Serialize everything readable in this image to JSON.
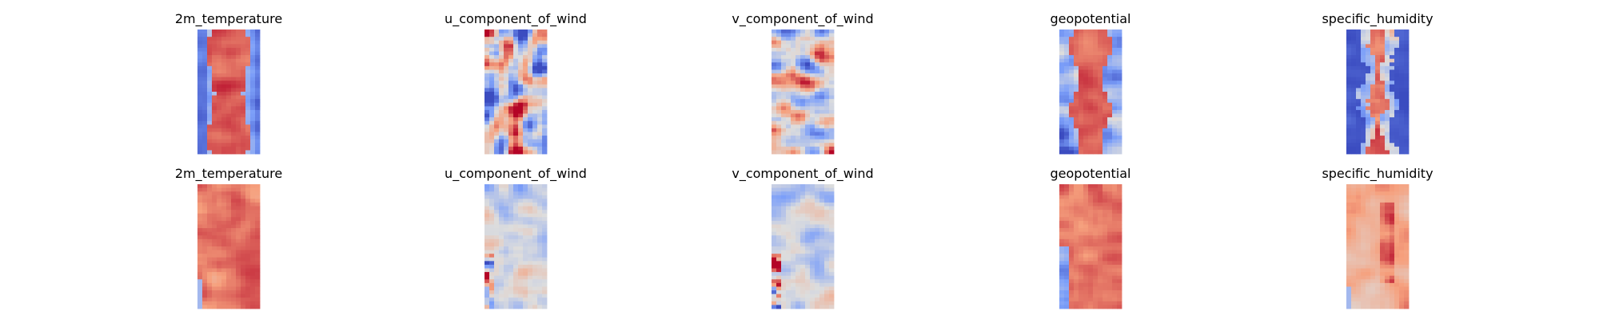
{
  "chart_data": {
    "type": "heatmap",
    "colormap": "coolwarm",
    "axes_visible": false,
    "grid": false,
    "rows": 2,
    "columns": 5,
    "panels": [
      {
        "title": "2m_temperature",
        "row": 0,
        "col": 0,
        "pattern": "band_center_hot"
      },
      {
        "title": "u_component_of_wind",
        "row": 0,
        "col": 1,
        "pattern": "noisy_bipolar"
      },
      {
        "title": "v_component_of_wind",
        "row": 0,
        "col": 2,
        "pattern": "noisy_neutral"
      },
      {
        "title": "geopotential",
        "row": 0,
        "col": 3,
        "pattern": "band_center_warm_wavy"
      },
      {
        "title": "specific_humidity",
        "row": 0,
        "col": 4,
        "pattern": "band_center_narrow_cold_edges"
      },
      {
        "title": "2m_temperature",
        "row": 1,
        "col": 0,
        "pattern": "uniform_warm"
      },
      {
        "title": "u_component_of_wind",
        "row": 1,
        "col": 1,
        "pattern": "neutral_faint"
      },
      {
        "title": "v_component_of_wind",
        "row": 1,
        "col": 2,
        "pattern": "neutral_faint"
      },
      {
        "title": "geopotential",
        "row": 1,
        "col": 3,
        "pattern": "uniform_warm_left_cold"
      },
      {
        "title": "specific_humidity",
        "row": 1,
        "col": 4,
        "pattern": "light_warm_center_hot"
      }
    ]
  }
}
